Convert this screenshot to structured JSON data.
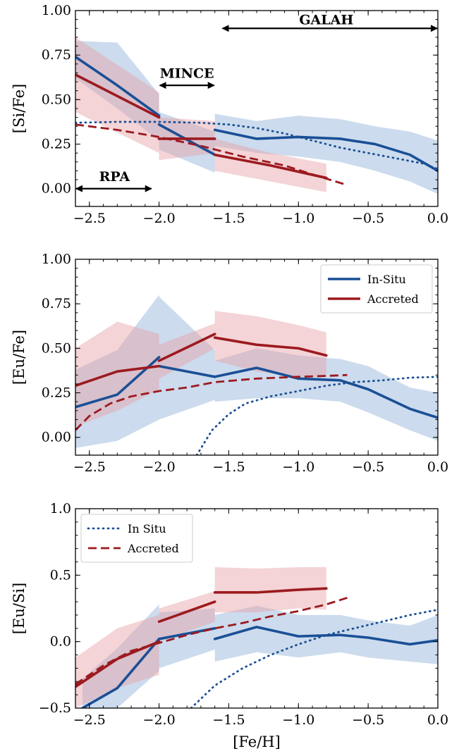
{
  "colors": {
    "in_situ": "#1a4f96",
    "accreted": "#9c1a1f",
    "in_situ_band": "#8fb0d8",
    "accreted_band": "#e7a0a4"
  },
  "chart_data": [
    {
      "type": "line",
      "ylabel": "[Si/Fe]",
      "xlabel": "",
      "xlim": [
        -2.6,
        0.0
      ],
      "ylim": [
        -0.1,
        1.0
      ],
      "xticks": [
        -2.5,
        -2.0,
        -1.5,
        -1.0,
        -0.5,
        0.0
      ],
      "xtick_labels": [
        "−2.5",
        "−2.0",
        "−1.5",
        "−1.0",
        "−0.5",
        "0.0"
      ],
      "yticks": [
        0.0,
        0.25,
        0.5,
        0.75,
        1.0
      ],
      "ytick_labels": [
        "0.00",
        "0.25",
        "0.50",
        "0.75",
        "1.00"
      ],
      "series": [
        {
          "group": "in_situ",
          "kind": "band",
          "x": [
            -2.6,
            -2.3,
            -2.0
          ],
          "lo": [
            0.62,
            0.45,
            0.27
          ],
          "hi": [
            0.83,
            0.82,
            0.53
          ]
        },
        {
          "group": "in_situ",
          "kind": "band",
          "x": [
            -2.0,
            -1.6
          ],
          "lo": [
            0.22,
            0.09
          ],
          "hi": [
            0.43,
            0.32
          ]
        },
        {
          "group": "in_situ",
          "kind": "band",
          "x": [
            -1.6,
            -1.3,
            -1.0,
            -0.7,
            -0.45,
            -0.2,
            0.0
          ],
          "lo": [
            0.24,
            0.2,
            0.18,
            0.15,
            0.1,
            0.04,
            -0.03
          ],
          "hi": [
            0.42,
            0.38,
            0.41,
            0.39,
            0.35,
            0.32,
            0.27
          ]
        },
        {
          "group": "accreted",
          "kind": "band",
          "x": [
            -2.6,
            -2.0
          ],
          "lo": [
            0.43,
            0.2
          ],
          "hi": [
            0.85,
            0.54
          ]
        },
        {
          "group": "accreted",
          "kind": "band",
          "x": [
            -2.0,
            -1.6
          ],
          "lo": [
            0.16,
            0.2
          ],
          "hi": [
            0.4,
            0.38
          ]
        },
        {
          "group": "accreted",
          "kind": "band",
          "x": [
            -1.6,
            -1.2,
            -0.8
          ],
          "lo": [
            0.1,
            0.04,
            -0.02
          ],
          "hi": [
            0.28,
            0.2,
            0.14
          ]
        },
        {
          "group": "in_situ",
          "kind": "line",
          "x": [
            -2.6,
            -2.3,
            -2.0
          ],
          "y": [
            0.74,
            0.58,
            0.41
          ]
        },
        {
          "group": "in_situ",
          "kind": "line",
          "x": [
            -2.0,
            -1.6
          ],
          "y": [
            0.36,
            0.19
          ]
        },
        {
          "group": "in_situ",
          "kind": "line",
          "x": [
            -1.6,
            -1.3,
            -1.0,
            -0.7,
            -0.45,
            -0.2,
            0.0
          ],
          "y": [
            0.33,
            0.28,
            0.29,
            0.28,
            0.25,
            0.19,
            0.1
          ]
        },
        {
          "group": "accreted",
          "kind": "line",
          "x": [
            -2.6,
            -2.0
          ],
          "y": [
            0.64,
            0.4
          ]
        },
        {
          "group": "accreted",
          "kind": "line",
          "x": [
            -2.0,
            -1.6
          ],
          "y": [
            0.28,
            0.28
          ]
        },
        {
          "group": "accreted",
          "kind": "line",
          "x": [
            -1.6,
            -1.2,
            -0.8
          ],
          "y": [
            0.19,
            0.13,
            0.06
          ]
        },
        {
          "group": "in_situ",
          "kind": "dotted",
          "x": [
            -2.6,
            -2.3,
            -2.0,
            -1.7,
            -1.5,
            -1.3,
            -1.1,
            -0.9,
            -0.7,
            -0.5,
            -0.3,
            -0.1,
            0.0
          ],
          "y": [
            0.37,
            0.375,
            0.375,
            0.37,
            0.36,
            0.34,
            0.31,
            0.27,
            0.23,
            0.2,
            0.17,
            0.14,
            0.11
          ]
        },
        {
          "group": "accreted",
          "kind": "dashed",
          "x": [
            -2.6,
            -2.3,
            -2.0,
            -1.7,
            -1.4,
            -1.1,
            -0.9,
            -0.65
          ],
          "y": [
            0.36,
            0.33,
            0.29,
            0.24,
            0.18,
            0.13,
            0.08,
            0.02
          ]
        }
      ],
      "annotations": [
        {
          "label": "GALAH",
          "x1": -1.55,
          "x2": 0.0,
          "y": 0.9,
          "text_x": -0.8,
          "text_y": 0.95
        },
        {
          "label": "MINCE",
          "x1": -2.0,
          "x2": -1.6,
          "y": 0.58,
          "text_x": -1.8,
          "text_y": 0.65
        },
        {
          "label": "RPA",
          "x1": -2.6,
          "x2": -2.05,
          "y": 0.0,
          "text_x": -2.32,
          "text_y": 0.07
        }
      ]
    },
    {
      "type": "line",
      "ylabel": "[Eu/Fe]",
      "xlabel": "",
      "xlim": [
        -2.6,
        0.0
      ],
      "ylim": [
        -0.1,
        1.0
      ],
      "xticks": [
        -2.5,
        -2.0,
        -1.5,
        -1.0,
        -0.5,
        0.0
      ],
      "xtick_labels": [
        "−2.5",
        "−2.0",
        "−1.5",
        "−1.0",
        "−0.5",
        "0.0"
      ],
      "yticks": [
        0.0,
        0.25,
        0.5,
        0.75,
        1.0
      ],
      "ytick_labels": [
        "0.00",
        "0.25",
        "0.50",
        "0.75",
        "1.00"
      ],
      "legend": {
        "position": "upper-right",
        "entries": [
          {
            "label": "In-Situ",
            "group": "in_situ",
            "style": "solid"
          },
          {
            "label": "Accreted",
            "group": "accreted",
            "style": "solid"
          }
        ]
      },
      "series": [
        {
          "group": "in_situ",
          "kind": "band",
          "x": [
            -2.6,
            -2.3,
            -2.0
          ],
          "lo": [
            -0.06,
            -0.02,
            0.1
          ],
          "hi": [
            0.38,
            0.49,
            0.8
          ]
        },
        {
          "group": "in_situ",
          "kind": "band",
          "x": [
            -2.0,
            -1.6
          ],
          "lo": [
            0.1,
            0.21
          ],
          "hi": [
            0.79,
            0.49
          ]
        },
        {
          "group": "in_situ",
          "kind": "band",
          "x": [
            -1.6,
            -1.3,
            -1.0,
            -0.7,
            -0.5,
            -0.2,
            0.0
          ],
          "lo": [
            0.2,
            0.22,
            0.22,
            0.2,
            0.14,
            0.04,
            -0.02
          ],
          "hi": [
            0.43,
            0.5,
            0.46,
            0.44,
            0.4,
            0.28,
            0.25
          ]
        },
        {
          "group": "accreted",
          "kind": "band",
          "x": [
            -2.6,
            -2.3,
            -2.0
          ],
          "lo": [
            0.06,
            0.15,
            0.27
          ],
          "hi": [
            0.5,
            0.65,
            0.58
          ]
        },
        {
          "group": "accreted",
          "kind": "band",
          "x": [
            -2.0,
            -1.6
          ],
          "lo": [
            0.33,
            0.5
          ],
          "hi": [
            0.52,
            0.64
          ]
        },
        {
          "group": "accreted",
          "kind": "band",
          "x": [
            -1.6,
            -1.3,
            -1.0,
            -0.8
          ],
          "lo": [
            0.43,
            0.37,
            0.34,
            0.34
          ],
          "hi": [
            0.71,
            0.68,
            0.63,
            0.59
          ]
        },
        {
          "group": "in_situ",
          "kind": "line",
          "x": [
            -2.6,
            -2.3,
            -2.0
          ],
          "y": [
            0.17,
            0.24,
            0.45
          ]
        },
        {
          "group": "in_situ",
          "kind": "line",
          "x": [
            -2.0,
            -1.6
          ],
          "y": [
            0.4,
            0.34
          ]
        },
        {
          "group": "in_situ",
          "kind": "line",
          "x": [
            -1.6,
            -1.3,
            -1.0,
            -0.7,
            -0.5,
            -0.2,
            0.0
          ],
          "y": [
            0.34,
            0.39,
            0.33,
            0.32,
            0.27,
            0.16,
            0.11
          ]
        },
        {
          "group": "accreted",
          "kind": "line",
          "x": [
            -2.6,
            -2.3,
            -2.0
          ],
          "y": [
            0.29,
            0.37,
            0.4
          ]
        },
        {
          "group": "accreted",
          "kind": "line",
          "x": [
            -2.0,
            -1.6
          ],
          "y": [
            0.43,
            0.58
          ]
        },
        {
          "group": "accreted",
          "kind": "line",
          "x": [
            -1.6,
            -1.3,
            -1.0,
            -0.8
          ],
          "y": [
            0.56,
            0.52,
            0.5,
            0.46
          ]
        },
        {
          "group": "in_situ",
          "kind": "dotted",
          "x": [
            -1.73,
            -1.62,
            -1.5,
            -1.38,
            -1.2,
            -1.0,
            -0.8,
            -0.6,
            -0.4,
            -0.2,
            0.0
          ],
          "y": [
            -0.1,
            0.04,
            0.13,
            0.19,
            0.23,
            0.26,
            0.29,
            0.31,
            0.32,
            0.335,
            0.34
          ]
        },
        {
          "group": "accreted",
          "kind": "dashed",
          "x": [
            -2.6,
            -2.5,
            -2.35,
            -2.2,
            -2.0,
            -1.8,
            -1.6,
            -1.3,
            -1.0,
            -0.8,
            -0.65
          ],
          "y": [
            0.04,
            0.12,
            0.19,
            0.23,
            0.26,
            0.28,
            0.31,
            0.33,
            0.34,
            0.345,
            0.35
          ]
        }
      ]
    },
    {
      "type": "line",
      "ylabel": "[Eu/Si]",
      "xlabel": "[Fe/H]",
      "xlim": [
        -2.6,
        0.0
      ],
      "ylim": [
        -0.5,
        1.0
      ],
      "xticks": [
        -2.5,
        -2.0,
        -1.5,
        -1.0,
        -0.5,
        0.0
      ],
      "xtick_labels": [
        "−2.5",
        "−2.0",
        "−1.5",
        "−1.0",
        "−0.5",
        "0.0"
      ],
      "yticks": [
        -0.5,
        0.0,
        0.5,
        1.0
      ],
      "ytick_labels": [
        "−0.5",
        "0.0",
        "0.5",
        "1.0"
      ],
      "legend": {
        "position": "upper-left",
        "entries": [
          {
            "label": "In Situ",
            "group": "in_situ",
            "style": "dotted"
          },
          {
            "label": "Accreted",
            "group": "accreted",
            "style": "dashed"
          }
        ]
      },
      "series": [
        {
          "group": "in_situ",
          "kind": "band",
          "x": [
            -2.55,
            -2.3,
            -2.0
          ],
          "lo": [
            -0.5,
            -0.5,
            -0.22
          ],
          "hi": [
            -0.28,
            -0.05,
            0.28
          ]
        },
        {
          "group": "in_situ",
          "kind": "band",
          "x": [
            -2.0,
            -1.6
          ],
          "lo": [
            -0.2,
            -0.06
          ],
          "hi": [
            0.22,
            0.25
          ]
        },
        {
          "group": "in_situ",
          "kind": "band",
          "x": [
            -1.6,
            -1.3,
            -1.0,
            -0.7,
            -0.5,
            -0.2,
            0.0
          ],
          "lo": [
            -0.15,
            -0.08,
            -0.12,
            -0.08,
            -0.12,
            -0.15,
            -0.17
          ],
          "hi": [
            0.2,
            0.27,
            0.2,
            0.2,
            0.16,
            0.12,
            0.2
          ]
        },
        {
          "group": "accreted",
          "kind": "band",
          "x": [
            -2.6,
            -2.3,
            -2.0
          ],
          "lo": [
            -0.5,
            -0.35,
            -0.25
          ],
          "hi": [
            -0.12,
            0.1,
            0.2
          ]
        },
        {
          "group": "accreted",
          "kind": "band",
          "x": [
            -2.0,
            -1.6
          ],
          "lo": [
            0.0,
            0.15
          ],
          "hi": [
            0.25,
            0.38
          ]
        },
        {
          "group": "accreted",
          "kind": "band",
          "x": [
            -1.6,
            -1.3,
            -1.0,
            -0.8
          ],
          "lo": [
            0.22,
            0.22,
            0.25,
            0.24
          ],
          "hi": [
            0.56,
            0.55,
            0.56,
            0.56
          ]
        },
        {
          "group": "in_situ",
          "kind": "line",
          "x": [
            -2.55,
            -2.3,
            -2.0
          ],
          "y": [
            -0.5,
            -0.35,
            0.02
          ]
        },
        {
          "group": "in_situ",
          "kind": "line",
          "x": [
            -2.0,
            -1.6
          ],
          "y": [
            0.02,
            0.1
          ]
        },
        {
          "group": "in_situ",
          "kind": "line",
          "x": [
            -1.6,
            -1.3,
            -1.0,
            -0.7,
            -0.5,
            -0.2,
            0.0
          ],
          "y": [
            0.02,
            0.11,
            0.04,
            0.05,
            0.03,
            -0.02,
            0.01
          ]
        },
        {
          "group": "accreted",
          "kind": "line",
          "x": [
            -2.6,
            -2.3,
            -2.0
          ],
          "y": [
            -0.34,
            -0.13,
            0.0
          ]
        },
        {
          "group": "accreted",
          "kind": "line",
          "x": [
            -2.0,
            -1.6
          ],
          "y": [
            0.15,
            0.3
          ]
        },
        {
          "group": "accreted",
          "kind": "line",
          "x": [
            -1.6,
            -1.3,
            -1.0,
            -0.8
          ],
          "y": [
            0.37,
            0.37,
            0.39,
            0.4
          ]
        },
        {
          "group": "in_situ",
          "kind": "dotted",
          "x": [
            -1.77,
            -1.6,
            -1.4,
            -1.2,
            -1.0,
            -0.8,
            -0.6,
            -0.4,
            -0.2,
            0.0
          ],
          "y": [
            -0.5,
            -0.33,
            -0.2,
            -0.1,
            -0.02,
            0.05,
            0.1,
            0.15,
            0.2,
            0.24
          ]
        },
        {
          "group": "accreted",
          "kind": "dashed",
          "x": [
            -2.6,
            -2.4,
            -2.2,
            -2.0,
            -1.8,
            -1.6,
            -1.4,
            -1.2,
            -1.0,
            -0.8,
            -0.65
          ],
          "y": [
            -0.32,
            -0.18,
            -0.07,
            -0.01,
            0.05,
            0.1,
            0.14,
            0.19,
            0.23,
            0.28,
            0.33
          ]
        }
      ]
    }
  ]
}
